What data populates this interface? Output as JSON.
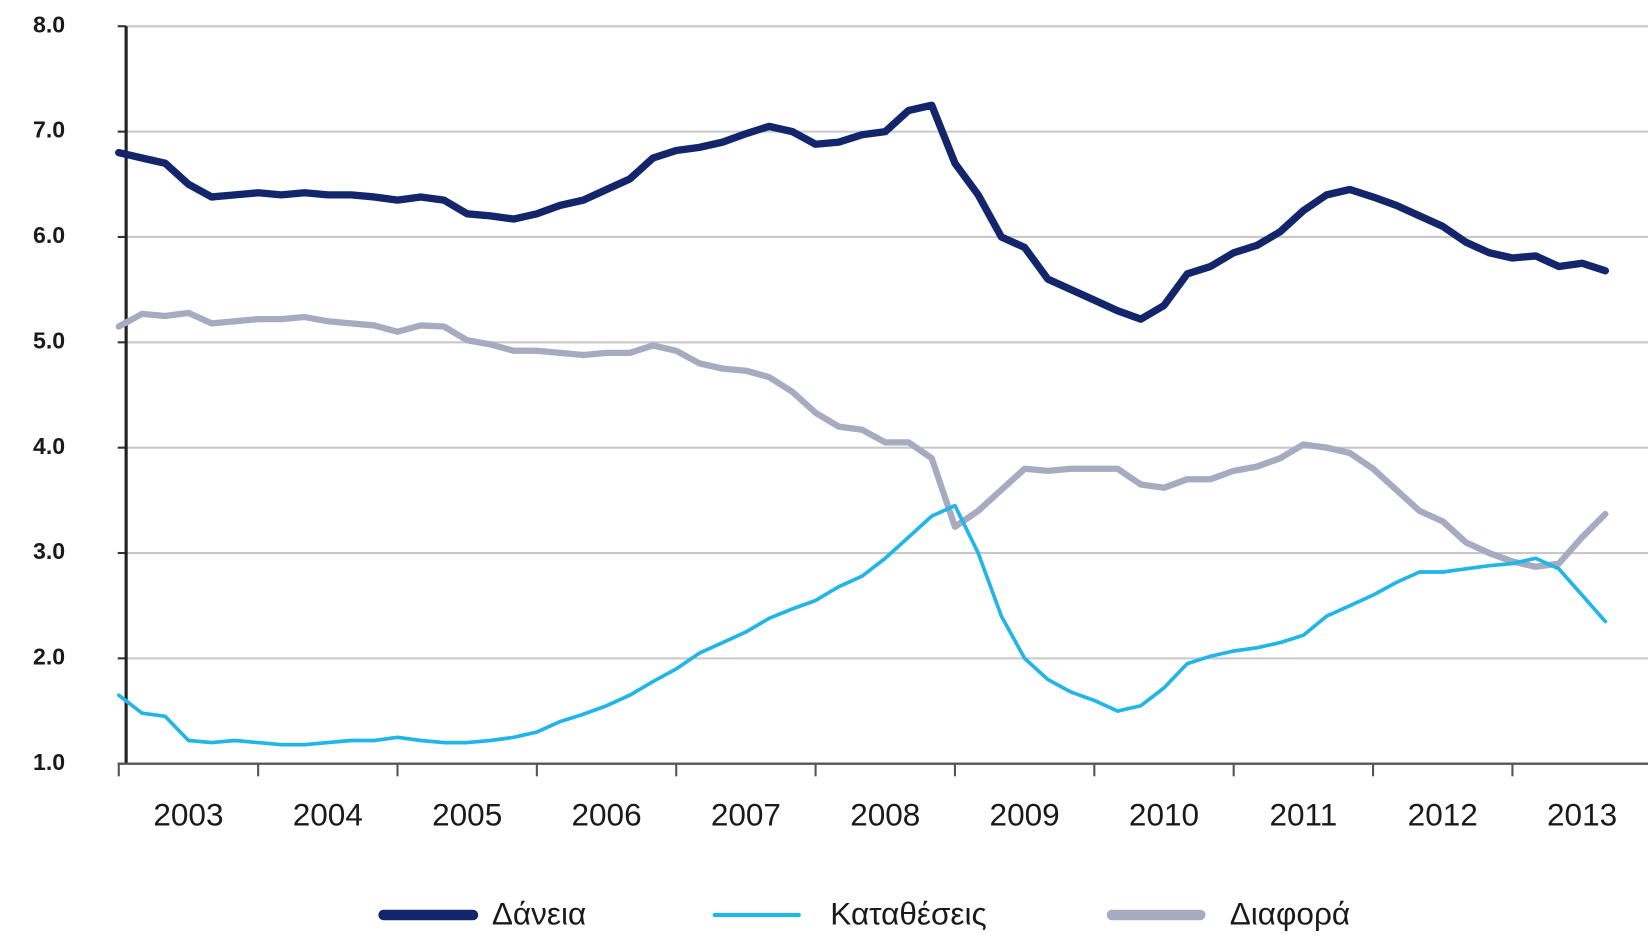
{
  "chart_data": {
    "type": "line",
    "categories": [
      null,
      null,
      null,
      "2003",
      null,
      null,
      null,
      null,
      null,
      "2004",
      null,
      null,
      null,
      null,
      null,
      "2005",
      null,
      null,
      null,
      null,
      null,
      "2006",
      null,
      null,
      null,
      null,
      null,
      "2007",
      null,
      null,
      null,
      null,
      null,
      "2008",
      null,
      null,
      null,
      null,
      null,
      "2009",
      null,
      null,
      null,
      null,
      null,
      "2010",
      null,
      null,
      null,
      null,
      null,
      "2011",
      null,
      null,
      null,
      null,
      null,
      "2012",
      null,
      null,
      null,
      null,
      null,
      "2013",
      null
    ],
    "series": [
      {
        "name": "Δάνεια",
        "color": "#13256b",
        "values": [
          6.8,
          6.75,
          6.7,
          6.5,
          6.38,
          6.4,
          6.42,
          6.4,
          6.42,
          6.4,
          6.4,
          6.38,
          6.35,
          6.38,
          6.35,
          6.22,
          6.2,
          6.17,
          6.22,
          6.3,
          6.35,
          6.45,
          6.55,
          6.75,
          6.82,
          6.85,
          6.9,
          6.98,
          7.05,
          7.0,
          6.88,
          6.9,
          6.97,
          7.0,
          7.2,
          7.25,
          6.7,
          6.4,
          6.0,
          5.9,
          5.6,
          5.5,
          5.4,
          5.3,
          5.22,
          5.35,
          5.65,
          5.72,
          5.85,
          5.92,
          6.05,
          6.25,
          6.4,
          6.45,
          6.38,
          6.3,
          6.2,
          6.1,
          5.95,
          5.85,
          5.8,
          5.82,
          5.72,
          5.75,
          5.68
        ]
      },
      {
        "name": "Καταθέσεις",
        "color": "#22b5e8",
        "values": [
          1.65,
          1.48,
          1.45,
          1.22,
          1.2,
          1.22,
          1.2,
          1.18,
          1.18,
          1.2,
          1.22,
          1.22,
          1.25,
          1.22,
          1.2,
          1.2,
          1.22,
          1.25,
          1.3,
          1.4,
          1.47,
          1.55,
          1.65,
          1.78,
          1.9,
          2.05,
          2.15,
          2.25,
          2.38,
          2.47,
          2.55,
          2.68,
          2.78,
          2.95,
          3.15,
          3.35,
          3.45,
          3.0,
          2.4,
          2.0,
          1.8,
          1.68,
          1.6,
          1.5,
          1.55,
          1.72,
          1.95,
          2.02,
          2.07,
          2.1,
          2.15,
          2.22,
          2.4,
          2.5,
          2.6,
          2.72,
          2.82,
          2.82,
          2.85,
          2.88,
          2.9,
          2.95,
          2.85,
          2.6,
          2.35
        ]
      },
      {
        "name": "Διαφορά",
        "color": "#a6abbf",
        "values": [
          5.15,
          5.27,
          5.25,
          5.28,
          5.18,
          5.2,
          5.22,
          5.22,
          5.24,
          5.2,
          5.18,
          5.16,
          5.1,
          5.16,
          5.15,
          5.02,
          4.98,
          4.92,
          4.92,
          4.9,
          4.88,
          4.9,
          4.9,
          4.97,
          4.92,
          4.8,
          4.75,
          4.73,
          4.67,
          4.53,
          4.33,
          4.2,
          4.17,
          4.05,
          4.05,
          3.9,
          3.25,
          3.4,
          3.6,
          3.8,
          3.78,
          3.8,
          3.8,
          3.8,
          3.65,
          3.62,
          3.7,
          3.7,
          3.78,
          3.82,
          3.9,
          4.03,
          4.0,
          3.95,
          3.8,
          3.6,
          3.4,
          3.3,
          3.1,
          3.0,
          2.92,
          2.87,
          2.9,
          3.15,
          3.37
        ]
      }
    ],
    "ylim": [
      1,
      8
    ],
    "yticks": [
      {
        "value": 1,
        "label": "1.0"
      },
      {
        "value": 2,
        "label": "2.0"
      },
      {
        "value": 3,
        "label": "3.0"
      },
      {
        "value": 4,
        "label": "4.0"
      },
      {
        "value": 5,
        "label": "5.0"
      },
      {
        "value": 6,
        "label": "6.0"
      },
      {
        "value": 7,
        "label": "7.0"
      },
      {
        "value": 8,
        "label": "8.0"
      }
    ],
    "grid": true,
    "legend": "bottom"
  }
}
